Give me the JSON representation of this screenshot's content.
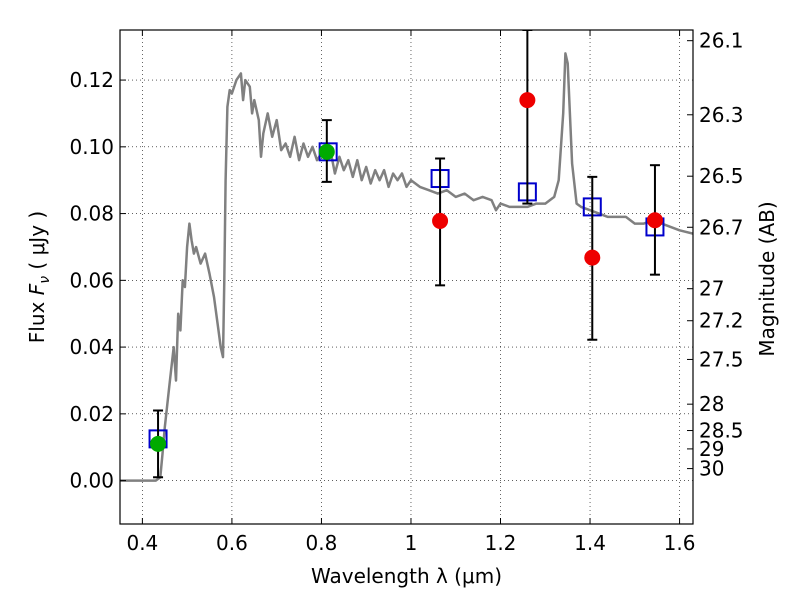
{
  "chart_data": {
    "type": "scatter",
    "xlabel": "Wavelength  λ (μm)",
    "ylabel": {
      "prefix": "Flux  ",
      "symbol": "F",
      "subscript": "ν",
      "suffix": "  ( μJy )"
    },
    "y2label": "Magnitude (AB)",
    "xlim": [
      0.35,
      1.63
    ],
    "ylim": [
      -0.013,
      0.135
    ],
    "grid": true,
    "x_ticks": [
      {
        "value": 0.4,
        "label": "0.4"
      },
      {
        "value": 0.6,
        "label": "0.6"
      },
      {
        "value": 0.8,
        "label": "0.8"
      },
      {
        "value": 1.0,
        "label": "1"
      },
      {
        "value": 1.2,
        "label": "1.2"
      },
      {
        "value": 1.4,
        "label": "1.4"
      },
      {
        "value": 1.6,
        "label": "1.6"
      }
    ],
    "y_ticks": [
      {
        "value": 0.0,
        "label": "0.00"
      },
      {
        "value": 0.02,
        "label": "0.02"
      },
      {
        "value": 0.04,
        "label": "0.04"
      },
      {
        "value": 0.06,
        "label": "0.06"
      },
      {
        "value": 0.08,
        "label": "0.08"
      },
      {
        "value": 0.1,
        "label": "0.10"
      },
      {
        "value": 0.12,
        "label": "0.12"
      }
    ],
    "y2_ticks": [
      {
        "flux": 0.1318,
        "label": "26.1"
      },
      {
        "flux": 0.1096,
        "label": "26.3"
      },
      {
        "flux": 0.0912,
        "label": "26.5"
      },
      {
        "flux": 0.0759,
        "label": "26.7"
      },
      {
        "flux": 0.0575,
        "label": "27"
      },
      {
        "flux": 0.0479,
        "label": "27.2"
      },
      {
        "flux": 0.0363,
        "label": "27.5"
      },
      {
        "flux": 0.0229,
        "label": "28"
      },
      {
        "flux": 0.015,
        "label": "28.5"
      },
      {
        "flux": 0.0095,
        "label": "29"
      },
      {
        "flux": 0.0036,
        "label": "30"
      }
    ],
    "model_spectrum": {
      "color": "#808080",
      "x": [
        0.35,
        0.43,
        0.44,
        0.445,
        0.45,
        0.46,
        0.47,
        0.475,
        0.48,
        0.485,
        0.49,
        0.495,
        0.5,
        0.505,
        0.51,
        0.515,
        0.52,
        0.53,
        0.54,
        0.55,
        0.56,
        0.57,
        0.575,
        0.58,
        0.583,
        0.586,
        0.59,
        0.595,
        0.6,
        0.61,
        0.62,
        0.625,
        0.63,
        0.64,
        0.645,
        0.65,
        0.66,
        0.665,
        0.67,
        0.68,
        0.69,
        0.7,
        0.71,
        0.72,
        0.73,
        0.74,
        0.75,
        0.76,
        0.77,
        0.78,
        0.79,
        0.8,
        0.81,
        0.82,
        0.83,
        0.84,
        0.85,
        0.86,
        0.87,
        0.88,
        0.89,
        0.9,
        0.91,
        0.92,
        0.93,
        0.94,
        0.95,
        0.96,
        0.97,
        0.98,
        0.99,
        1.0,
        1.02,
        1.04,
        1.06,
        1.08,
        1.1,
        1.12,
        1.14,
        1.16,
        1.18,
        1.19,
        1.2,
        1.22,
        1.24,
        1.26,
        1.28,
        1.3,
        1.32,
        1.33,
        1.34,
        1.345,
        1.35,
        1.36,
        1.37,
        1.38,
        1.4,
        1.42,
        1.44,
        1.46,
        1.48,
        1.5,
        1.52,
        1.54,
        1.56,
        1.58,
        1.6,
        1.63
      ],
      "y": [
        0.0,
        0.0,
        0.001,
        0.008,
        0.016,
        0.028,
        0.04,
        0.03,
        0.05,
        0.045,
        0.06,
        0.058,
        0.07,
        0.077,
        0.072,
        0.068,
        0.07,
        0.065,
        0.068,
        0.062,
        0.055,
        0.045,
        0.04,
        0.037,
        0.06,
        0.09,
        0.112,
        0.117,
        0.116,
        0.12,
        0.122,
        0.114,
        0.12,
        0.118,
        0.11,
        0.114,
        0.108,
        0.097,
        0.104,
        0.11,
        0.103,
        0.108,
        0.099,
        0.101,
        0.097,
        0.103,
        0.096,
        0.101,
        0.097,
        0.1,
        0.096,
        0.098,
        0.097,
        0.099,
        0.092,
        0.097,
        0.093,
        0.096,
        0.091,
        0.096,
        0.09,
        0.094,
        0.089,
        0.093,
        0.09,
        0.093,
        0.088,
        0.092,
        0.09,
        0.092,
        0.088,
        0.09,
        0.088,
        0.087,
        0.086,
        0.087,
        0.085,
        0.086,
        0.084,
        0.085,
        0.084,
        0.081,
        0.083,
        0.082,
        0.082,
        0.082,
        0.083,
        0.083,
        0.085,
        0.09,
        0.11,
        0.128,
        0.125,
        0.095,
        0.083,
        0.082,
        0.081,
        0.08,
        0.079,
        0.079,
        0.079,
        0.077,
        0.077,
        0.078,
        0.077,
        0.076,
        0.075,
        0.074
      ]
    },
    "series": [
      {
        "marker": "open-square",
        "color": "#0000cc",
        "points": [
          {
            "x": 0.435,
            "y": 0.0125
          },
          {
            "x": 0.815,
            "y": 0.0985
          },
          {
            "x": 1.065,
            "y": 0.0905
          },
          {
            "x": 1.26,
            "y": 0.0865
          },
          {
            "x": 1.405,
            "y": 0.082
          },
          {
            "x": 1.545,
            "y": 0.076
          }
        ]
      },
      {
        "marker": "filled-circle",
        "color": "#00aa00",
        "points": [
          {
            "x": 0.435,
            "y": 0.011,
            "err_low": 0.001,
            "err_high": 0.021
          },
          {
            "x": 0.812,
            "y": 0.0985,
            "err_low": 0.0895,
            "err_high": 0.108
          }
        ]
      },
      {
        "marker": "filled-circle",
        "color": "#ee0000",
        "points": [
          {
            "x": 1.065,
            "y": 0.0778,
            "err_low": 0.0585,
            "err_high": 0.0965
          },
          {
            "x": 1.26,
            "y": 0.114,
            "err_low": 0.083,
            "err_high": 0.135
          },
          {
            "x": 1.405,
            "y": 0.0668,
            "err_low": 0.0422,
            "err_high": 0.091
          },
          {
            "x": 1.545,
            "y": 0.078,
            "err_low": 0.0617,
            "err_high": 0.0945
          }
        ]
      }
    ]
  }
}
